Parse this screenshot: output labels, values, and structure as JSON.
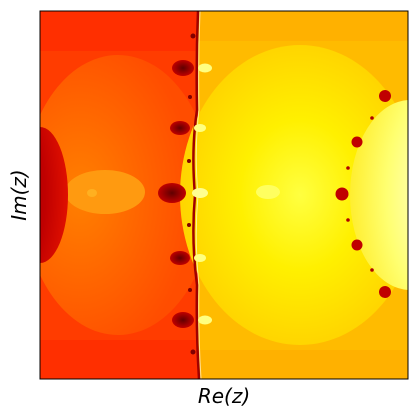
{
  "chart_data": {
    "type": "heatmap",
    "title": "",
    "xlabel": "Re(z)",
    "ylabel": "Im(z)",
    "xticks": [],
    "yticks": [],
    "colormap": "hot",
    "colors": {
      "dark_red": "#b30000",
      "red": "#e82000",
      "red_orange": "#ff4000",
      "orange": "#ff7a00",
      "amber": "#ffb000",
      "yellow": "#ffe600",
      "light_yellow": "#ffffa0",
      "white": "#ffffff",
      "black": "#000000"
    },
    "grid": false,
    "legend": "none"
  }
}
